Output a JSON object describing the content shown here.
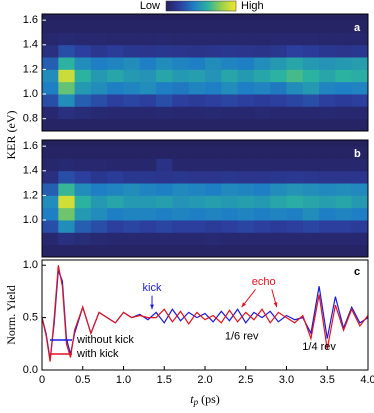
{
  "colorbar": {
    "low": "Low",
    "high": "High",
    "colors": [
      "#25215f",
      "#2c3e9e",
      "#1f7fc4",
      "#2bb2a0",
      "#9cd14a",
      "#f5e62c"
    ]
  },
  "ylabel": "KER (eV)",
  "chart_data": [
    {
      "type": "heatmap",
      "label": "a",
      "xlim": [
        0,
        4
      ],
      "ylim": [
        0.7,
        1.65
      ],
      "yticks": [
        0.8,
        {
          "value": 1.0,
          "label": "1.0"
        },
        1.2,
        1.4,
        1.6
      ],
      "xbins": [
        0,
        0.2,
        0.4,
        0.6,
        0.8,
        1.0,
        1.2,
        1.4,
        1.6,
        1.8,
        2.0,
        2.2,
        2.4,
        2.6,
        2.8,
        3.0,
        3.2,
        3.4,
        3.6,
        3.8,
        4.0
      ],
      "ybins": [
        0.7,
        0.8,
        0.9,
        1.0,
        1.1,
        1.2,
        1.3,
        1.4,
        1.5,
        1.6
      ],
      "z": [
        [
          0.02,
          0.02,
          0.02,
          0.02,
          0.02,
          0.02,
          0.02,
          0.02,
          0.02,
          0.02,
          0.02,
          0.02,
          0.02,
          0.02,
          0.02,
          0.02,
          0.02,
          0.02,
          0.02,
          0.02
        ],
        [
          0.05,
          0.1,
          0.08,
          0.06,
          0.05,
          0.05,
          0.05,
          0.06,
          0.05,
          0.05,
          0.06,
          0.05,
          0.05,
          0.06,
          0.05,
          0.05,
          0.05,
          0.06,
          0.05,
          0.05
        ],
        [
          0.25,
          0.45,
          0.3,
          0.25,
          0.2,
          0.22,
          0.2,
          0.25,
          0.2,
          0.18,
          0.2,
          0.22,
          0.2,
          0.18,
          0.2,
          0.22,
          0.25,
          0.2,
          0.18,
          0.2
        ],
        [
          0.4,
          0.7,
          0.5,
          0.45,
          0.4,
          0.42,
          0.45,
          0.4,
          0.38,
          0.42,
          0.4,
          0.45,
          0.4,
          0.42,
          0.38,
          0.45,
          0.5,
          0.42,
          0.4,
          0.42
        ],
        [
          0.45,
          0.9,
          0.6,
          0.5,
          0.55,
          0.5,
          0.48,
          0.55,
          0.5,
          0.52,
          0.48,
          0.55,
          0.5,
          0.55,
          0.6,
          0.65,
          0.6,
          0.55,
          0.6,
          0.58
        ],
        [
          0.3,
          0.6,
          0.45,
          0.4,
          0.42,
          0.45,
          0.4,
          0.45,
          0.42,
          0.4,
          0.45,
          0.42,
          0.4,
          0.45,
          0.5,
          0.55,
          0.5,
          0.48,
          0.5,
          0.52
        ],
        [
          0.1,
          0.25,
          0.2,
          0.15,
          0.18,
          0.15,
          0.14,
          0.15,
          0.14,
          0.13,
          0.14,
          0.15,
          0.14,
          0.13,
          0.15,
          0.2,
          0.18,
          0.15,
          0.14,
          0.15
        ],
        [
          0.04,
          0.06,
          0.05,
          0.05,
          0.04,
          0.04,
          0.04,
          0.05,
          0.04,
          0.04,
          0.04,
          0.04,
          0.04,
          0.04,
          0.05,
          0.05,
          0.05,
          0.04,
          0.04,
          0.04
        ],
        [
          0.02,
          0.02,
          0.02,
          0.02,
          0.02,
          0.02,
          0.02,
          0.02,
          0.02,
          0.02,
          0.02,
          0.02,
          0.02,
          0.02,
          0.02,
          0.02,
          0.02,
          0.02,
          0.02,
          0.02
        ]
      ]
    },
    {
      "type": "heatmap",
      "label": "b",
      "xlim": [
        0,
        4
      ],
      "ylim": [
        0.7,
        1.65
      ],
      "yticks": [
        {
          "value": 1.0,
          "label": "1.0"
        },
        1.2,
        1.4,
        1.6
      ],
      "xbins": [
        0,
        0.2,
        0.4,
        0.6,
        0.8,
        1.0,
        1.2,
        1.4,
        1.6,
        1.8,
        2.0,
        2.2,
        2.4,
        2.6,
        2.8,
        3.0,
        3.2,
        3.4,
        3.6,
        3.8,
        4.0
      ],
      "ybins": [
        0.7,
        0.8,
        0.9,
        1.0,
        1.1,
        1.2,
        1.3,
        1.4,
        1.5,
        1.6
      ],
      "z": [
        [
          0.02,
          0.02,
          0.02,
          0.02,
          0.02,
          0.02,
          0.02,
          0.02,
          0.02,
          0.02,
          0.02,
          0.02,
          0.02,
          0.02,
          0.02,
          0.02,
          0.02,
          0.02,
          0.02,
          0.02
        ],
        [
          0.05,
          0.1,
          0.08,
          0.06,
          0.05,
          0.05,
          0.05,
          0.05,
          0.05,
          0.05,
          0.06,
          0.05,
          0.05,
          0.05,
          0.05,
          0.05,
          0.05,
          0.05,
          0.05,
          0.05
        ],
        [
          0.25,
          0.45,
          0.3,
          0.25,
          0.2,
          0.22,
          0.2,
          0.22,
          0.2,
          0.2,
          0.18,
          0.2,
          0.22,
          0.2,
          0.18,
          0.2,
          0.22,
          0.2,
          0.2,
          0.18
        ],
        [
          0.4,
          0.72,
          0.5,
          0.45,
          0.4,
          0.42,
          0.42,
          0.4,
          0.42,
          0.4,
          0.42,
          0.4,
          0.42,
          0.4,
          0.42,
          0.4,
          0.45,
          0.4,
          0.42,
          0.4
        ],
        [
          0.45,
          0.92,
          0.6,
          0.5,
          0.55,
          0.5,
          0.5,
          0.52,
          0.48,
          0.5,
          0.52,
          0.5,
          0.52,
          0.5,
          0.55,
          0.58,
          0.55,
          0.52,
          0.55,
          0.5
        ],
        [
          0.3,
          0.62,
          0.45,
          0.4,
          0.42,
          0.45,
          0.42,
          0.4,
          0.44,
          0.42,
          0.4,
          0.44,
          0.42,
          0.4,
          0.45,
          0.48,
          0.46,
          0.44,
          0.45,
          0.44
        ],
        [
          0.1,
          0.25,
          0.2,
          0.15,
          0.18,
          0.15,
          0.15,
          0.14,
          0.15,
          0.14,
          0.14,
          0.15,
          0.14,
          0.14,
          0.15,
          0.16,
          0.15,
          0.14,
          0.14,
          0.14
        ],
        [
          0.04,
          0.06,
          0.05,
          0.05,
          0.04,
          0.04,
          0.04,
          0.12,
          0.04,
          0.04,
          0.04,
          0.04,
          0.04,
          0.04,
          0.04,
          0.04,
          0.04,
          0.04,
          0.04,
          0.04
        ],
        [
          0.02,
          0.02,
          0.02,
          0.02,
          0.02,
          0.02,
          0.02,
          0.02,
          0.02,
          0.02,
          0.02,
          0.02,
          0.02,
          0.02,
          0.02,
          0.02,
          0.02,
          0.02,
          0.02,
          0.02
        ]
      ]
    },
    {
      "type": "line",
      "label": "c",
      "ylabel": "Norm. Yield",
      "xlabel": {
        "symbol": "t",
        "subscript": "p",
        "unit": "(ps)"
      },
      "xlim": [
        0,
        4
      ],
      "ylim": [
        0,
        1.05
      ],
      "xticks": [
        0,
        0.5,
        {
          "value": 1.0,
          "label": "1.0"
        },
        1.5,
        {
          "value": 2.0,
          "label": "2.0"
        },
        2.5,
        {
          "value": 3.0,
          "label": "3.0"
        },
        3.5,
        {
          "value": 4.0,
          "label": "4.0"
        }
      ],
      "yticks": [
        {
          "value": 0.0,
          "label": "0.0"
        },
        0.5,
        {
          "value": 1.0,
          "label": "1.0"
        }
      ],
      "legend": "lower left",
      "x": [
        0,
        0.05,
        0.1,
        0.15,
        0.2,
        0.25,
        0.3,
        0.35,
        0.4,
        0.5,
        0.6,
        0.7,
        0.8,
        0.9,
        1.0,
        1.1,
        1.2,
        1.3,
        1.4,
        1.5,
        1.6,
        1.7,
        1.8,
        1.9,
        2.0,
        2.1,
        2.2,
        2.3,
        2.4,
        2.5,
        2.6,
        2.7,
        2.8,
        2.9,
        3.0,
        3.1,
        3.2,
        3.3,
        3.4,
        3.5,
        3.6,
        3.7,
        3.8,
        3.9,
        4.0
      ],
      "series": [
        {
          "name": "without kick",
          "color": "#1a1adb",
          "values": [
            0.5,
            0.35,
            0.1,
            0.45,
            0.95,
            0.85,
            0.3,
            0.15,
            0.35,
            0.6,
            0.35,
            0.55,
            0.5,
            0.45,
            0.55,
            0.5,
            0.53,
            0.48,
            0.55,
            0.45,
            0.58,
            0.47,
            0.55,
            0.5,
            0.54,
            0.46,
            0.56,
            0.47,
            0.58,
            0.45,
            0.55,
            0.5,
            0.56,
            0.46,
            0.52,
            0.48,
            0.5,
            0.35,
            0.8,
            0.3,
            0.7,
            0.4,
            0.6,
            0.45,
            0.5
          ]
        },
        {
          "name": "with kick",
          "color": "#e0141e",
          "values": [
            0.5,
            0.33,
            0.08,
            0.5,
            1.0,
            0.8,
            0.25,
            0.12,
            0.38,
            0.6,
            0.35,
            0.55,
            0.5,
            0.45,
            0.55,
            0.5,
            0.52,
            0.5,
            0.5,
            0.58,
            0.46,
            0.56,
            0.44,
            0.55,
            0.48,
            0.52,
            0.45,
            0.57,
            0.46,
            0.55,
            0.48,
            0.58,
            0.45,
            0.55,
            0.5,
            0.45,
            0.52,
            0.3,
            0.72,
            0.2,
            0.62,
            0.38,
            0.58,
            0.42,
            0.52
          ]
        }
      ],
      "annotations": [
        {
          "text": "kick",
          "color": "#1a1adb"
        },
        {
          "text": "echo",
          "color": "#e0141e"
        },
        {
          "text": "1/6 rev",
          "color": "#000000"
        },
        {
          "text": "1/4 rev",
          "color": "#000000"
        }
      ]
    }
  ]
}
